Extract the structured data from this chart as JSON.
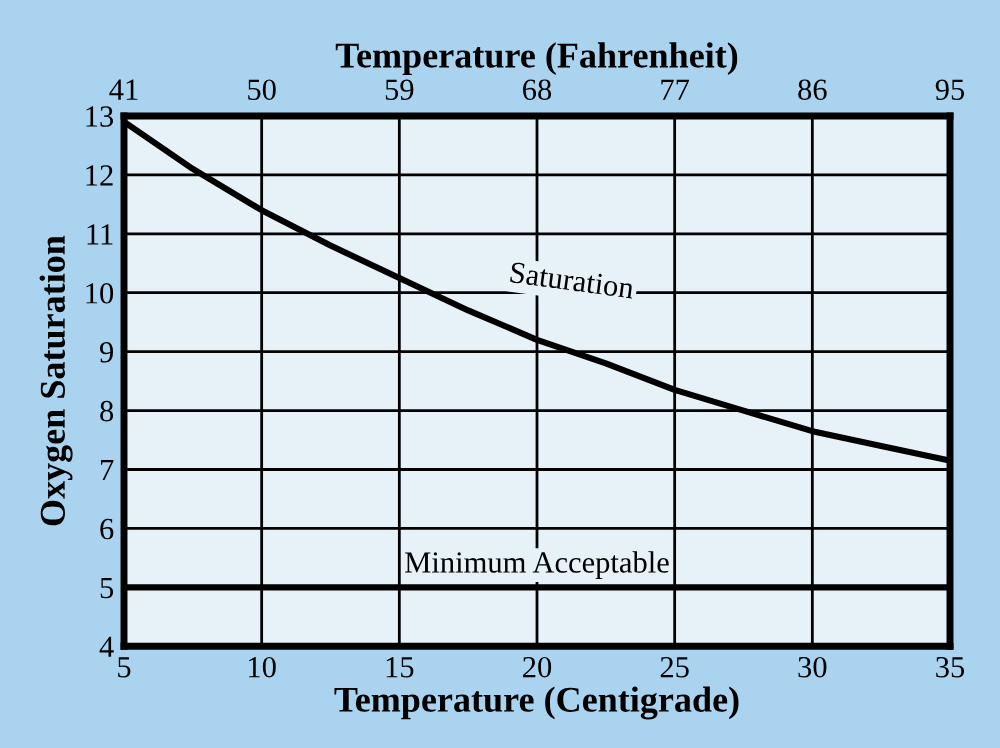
{
  "chart_data": {
    "type": "line",
    "xlabel": "Temperature (Centigrade)",
    "ylabel": "Oxygen Saturation",
    "x2label": "Temperature (Fahrenheit)",
    "x": [
      5,
      7.5,
      10,
      12.5,
      15,
      17.5,
      20,
      22.5,
      25,
      27.5,
      30,
      32.5,
      35
    ],
    "series": [
      {
        "name": "Saturation",
        "color": "#000000",
        "values": [
          12.9,
          12.1,
          11.4,
          10.8,
          10.25,
          9.7,
          9.2,
          8.8,
          8.35,
          8.0,
          7.65,
          7.4,
          7.15
        ]
      }
    ],
    "xlim": [
      5,
      35
    ],
    "xticks": [
      5,
      10,
      15,
      20,
      25,
      30,
      35
    ],
    "x2lim": [
      41,
      95
    ],
    "x2ticks": [
      41,
      50,
      59,
      68,
      77,
      86,
      95
    ],
    "ylim": [
      4,
      13
    ],
    "yticks": [
      4,
      5,
      6,
      7,
      8,
      9,
      10,
      11,
      12,
      13
    ],
    "ref_lines": [
      {
        "axis": "y",
        "value": 5,
        "label": "Minimum Acceptable",
        "color": "#000000",
        "line_style": "solid"
      }
    ],
    "grid": true,
    "legend": false,
    "marker": "none",
    "line_style": "solid"
  }
}
